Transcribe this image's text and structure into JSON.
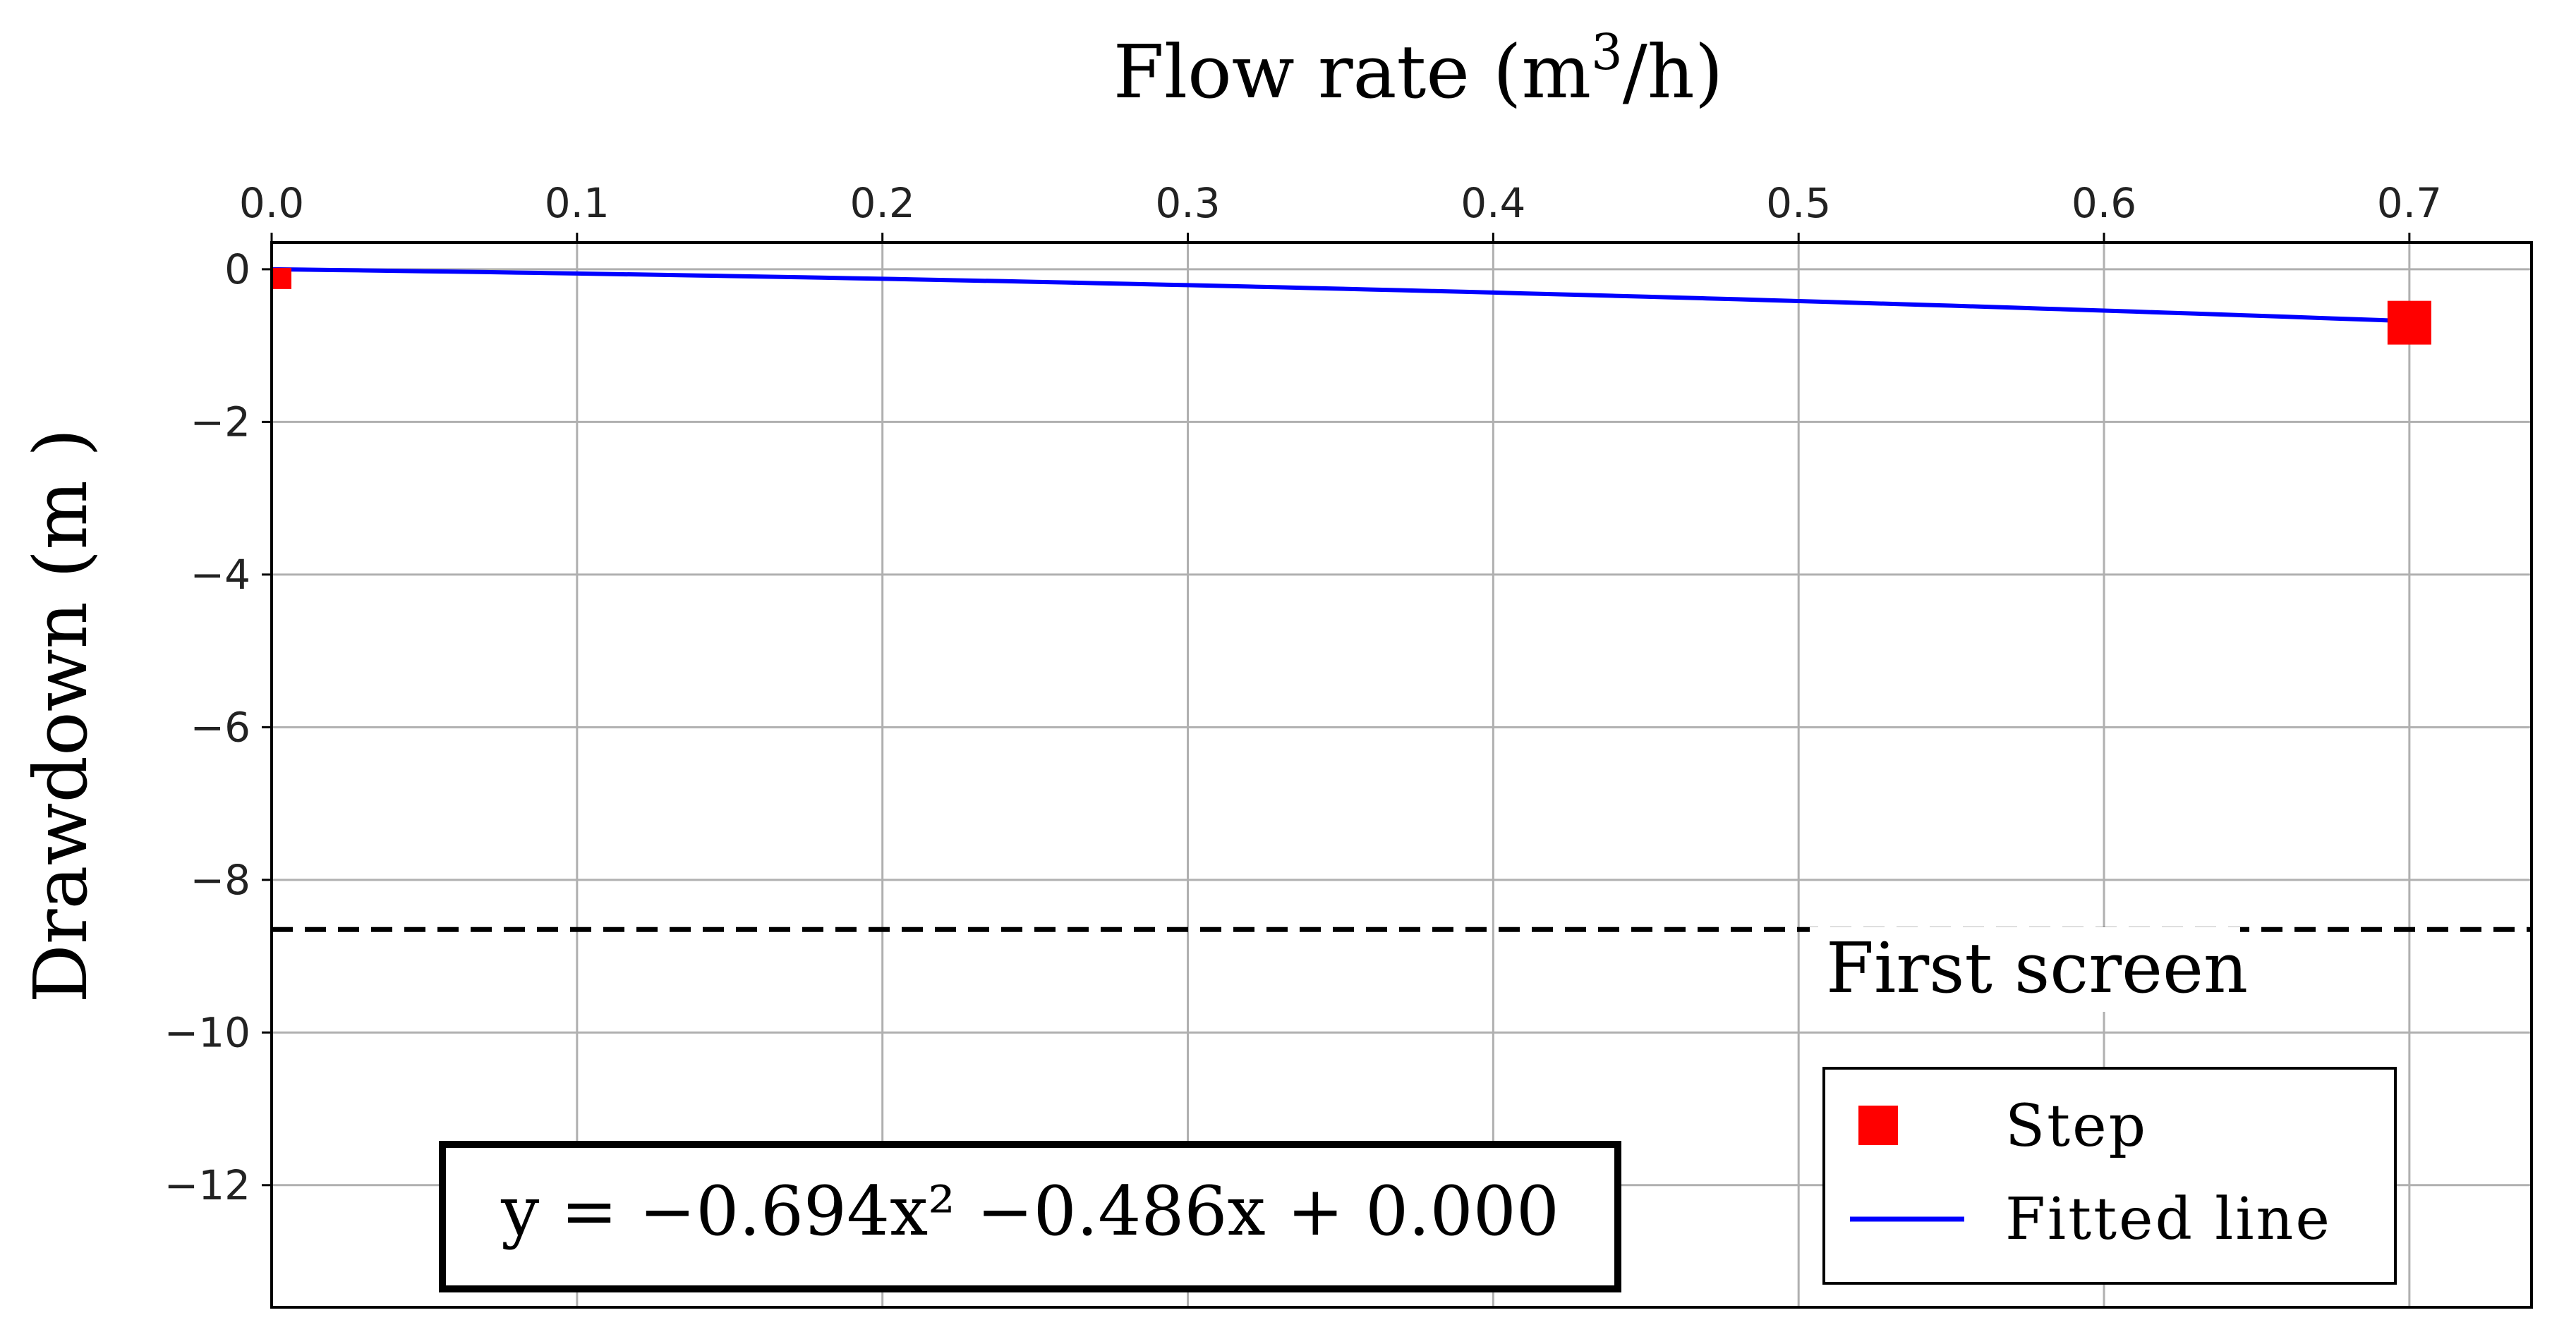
{
  "chart_data": {
    "type": "line",
    "title": "",
    "xlabel_main": "Flow rate (m",
    "xlabel_sup": "3",
    "xlabel_tail": "/h)",
    "ylabel": "Drawdown (m )",
    "x_axis_position": "top",
    "xlim": [
      0.0,
      0.74
    ],
    "ylim": [
      -13.6,
      0.35
    ],
    "x_ticks": [
      0.0,
      0.1,
      0.2,
      0.3,
      0.4,
      0.5,
      0.6,
      0.7
    ],
    "x_tick_labels": [
      "0.0",
      "0.1",
      "0.2",
      "0.3",
      "0.4",
      "0.5",
      "0.6",
      "0.7"
    ],
    "y_ticks": [
      0,
      -2,
      -4,
      -6,
      -8,
      -10,
      -12
    ],
    "y_tick_labels": [
      "0",
      "−2",
      "−4",
      "−6",
      "−8",
      "−10",
      "−12"
    ],
    "grid": true,
    "series": [
      {
        "name": "Step",
        "kind": "scatter",
        "marker": "square",
        "color": "#ff0000",
        "x": [
          0.003,
          0.7
        ],
        "y": [
          -0.12,
          -0.7
        ]
      },
      {
        "name": "Fitted line",
        "kind": "line",
        "color": "#0000ff",
        "equation": {
          "a": -0.694,
          "b": -0.486,
          "c": 0.0
        },
        "x_range": [
          0.0,
          0.7
        ]
      }
    ],
    "reference_line": {
      "y": -8.65,
      "style": "dashed",
      "color": "#000000",
      "label": "First screen"
    },
    "equation_label": "y = −0.694x² −0.486x + 0.000",
    "legend": {
      "placement": "bottom-right",
      "entries": [
        "Step",
        "Fitted line"
      ]
    }
  }
}
